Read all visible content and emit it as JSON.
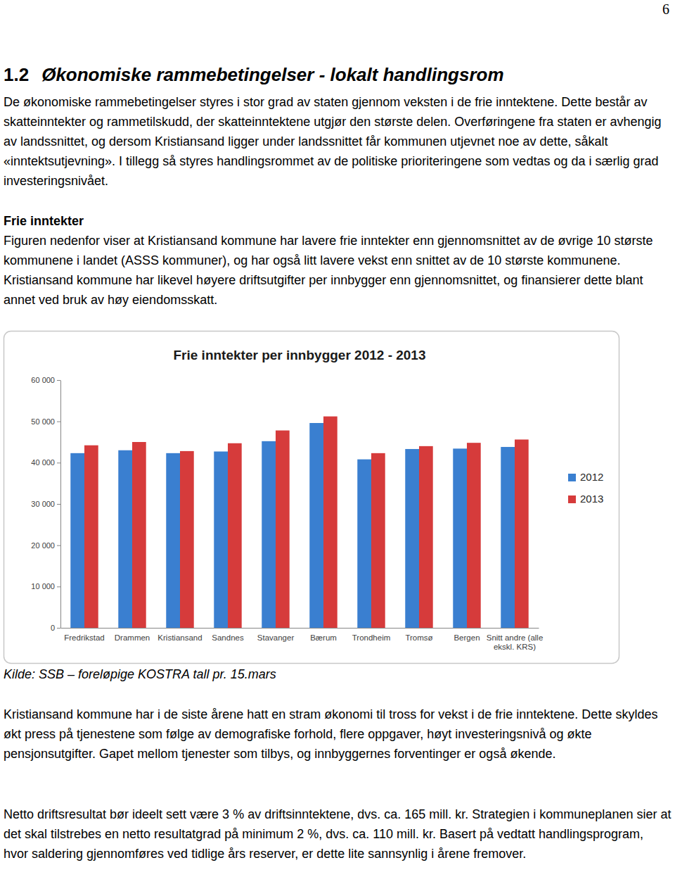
{
  "page_number": "6",
  "heading": {
    "number": "1.2",
    "title": "Økonomiske rammebetingelser - lokalt handlingsrom"
  },
  "intro": "De økonomiske rammebetingelser styres i stor grad av staten gjennom veksten i de frie inntektene. Dette består av skatteinntekter og rammetilskudd, der skatteinntektene utgjør den største delen. Overføringene fra staten er avhengig av landssnittet, og dersom Kristiansand ligger under landssnittet får kommunen utjevnet noe av dette, såkalt «inntektsutjevning». I tillegg så styres handlingsrommet av de politiske prioriteringene som vedtas og da i særlig grad investeringsnivået.",
  "subheading": "Frie inntekter",
  "body": "Figuren nedenfor viser at Kristiansand kommune har lavere frie inntekter enn gjennomsnittet av de øvrige 10 største kommunene i landet (ASSS kommuner), og har også litt lavere vekst enn snittet av de 10 største kommunene. Kristiansand kommune har likevel høyere driftsutgifter per innbygger enn gjennomsnittet, og finansierer dette blant annet ved bruk av høy eiendomsskatt.",
  "chart_data": {
    "type": "bar",
    "title": "Frie inntekter per innbygger 2012 - 2013",
    "categories": [
      "Fredrikstad",
      "Drammen",
      "Kristiansand",
      "Sandnes",
      "Stavanger",
      "Bærum",
      "Trondheim",
      "Tromsø",
      "Bergen",
      "Snitt andre (alle ekskl. KRS)"
    ],
    "series": [
      {
        "name": "2012",
        "color": "#3a7fd0",
        "values": [
          42300,
          43000,
          42300,
          42700,
          45200,
          49600,
          40800,
          43300,
          43400,
          43800
        ]
      },
      {
        "name": "2013",
        "color": "#d63b3b",
        "values": [
          44200,
          45000,
          42800,
          44700,
          47800,
          51200,
          42300,
          44000,
          44800,
          45600
        ]
      }
    ],
    "ylim": [
      0,
      60000
    ],
    "yticks": [
      0,
      {
        "value": 10000,
        "label": "10 000"
      },
      {
        "value": 20000,
        "label": "20 000"
      },
      {
        "value": 30000,
        "label": "30 000"
      },
      {
        "value": 40000,
        "label": "40 000"
      },
      {
        "value": 50000,
        "label": "50 000"
      },
      {
        "value": 60000,
        "label": "60 000"
      }
    ],
    "grid": false,
    "legend": "right"
  },
  "source": "Kilde: SSB – foreløpige KOSTRA tall pr. 15.mars",
  "closing": [
    "Kristiansand kommune har i de siste årene hatt en stram økonomi til tross for vekst i de frie inntektene. Dette skyldes økt press på tjenestene som følge av demografiske forhold, flere oppgaver, høyt investeringsnivå og økte pensjonsutgifter. Gapet mellom tjenester som tilbys, og innbyggernes forventinger er også økende.",
    "Netto driftsresultat bør ideelt sett være 3 % av driftsinntektene, dvs. ca. 165 mill. kr. Strategien i kommuneplanen sier at det skal tilstrebes en netto resultatgrad på minimum 2 %, dvs. ca. 110 mill. kr. Basert på vedtatt handlingsprogram, hvor saldering gjennomføres ved tidlige års reserver, er dette lite sannsynlig i årene fremover."
  ]
}
